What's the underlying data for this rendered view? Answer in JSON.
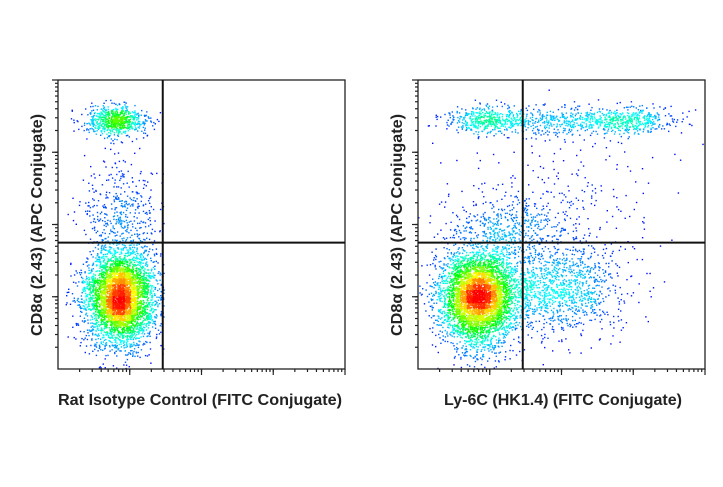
{
  "chart_data": [
    {
      "type": "scatter",
      "subtype": "flow-cytometry-density",
      "xlabel": "Rat Isotype Control (FITC Conjugate)",
      "ylabel": "CD8α (2.43) (APC Conjugate)",
      "xscale": "log10",
      "yscale": "log10",
      "xlim_log10": [
        1,
        5
      ],
      "ylim_log10": [
        1,
        5
      ],
      "gates": {
        "x_log10": 2.46,
        "y_log10": 2.75
      },
      "populations": [
        {
          "name": "CD8-negative",
          "x": 1.86,
          "y": 2.0,
          "sdx": 0.24,
          "sdy": 0.32,
          "n": 4300,
          "xmax": 2.47
        },
        {
          "name": "CD8-positive",
          "x": 1.8,
          "y": 4.45,
          "sdx": 0.22,
          "sdy": 0.1,
          "n": 700,
          "xmax": 2.47
        },
        {
          "name": "intermediate",
          "x": 1.85,
          "y": 3.1,
          "sdx": 0.28,
          "sdy": 0.4,
          "n": 450,
          "xmax": 2.47
        }
      ],
      "colormap": [
        "#0000ff",
        "#00ffff",
        "#00ff00",
        "#ffff00",
        "#ff0000"
      ]
    },
    {
      "type": "scatter",
      "subtype": "flow-cytometry-density",
      "xlabel": "Ly-6C (HK1.4) (FITC Conjugate)",
      "ylabel": "CD8α (2.43) (APC Conjugate)",
      "xscale": "log10",
      "yscale": "log10",
      "xlim_log10": [
        1,
        5
      ],
      "ylim_log10": [
        1,
        5
      ],
      "gates": {
        "x_log10": 2.46,
        "y_log10": 2.75
      },
      "populations": [
        {
          "name": "Ly-6C-negative CD8-negative",
          "x": 1.83,
          "y": 2.0,
          "sdx": 0.27,
          "sdy": 0.33,
          "n": 4300
        },
        {
          "name": "Ly-6C-positive CD8-negative",
          "x": 2.9,
          "y": 2.1,
          "sdx": 0.5,
          "sdy": 0.3,
          "n": 1200
        },
        {
          "name": "CD8-positive Ly-6C-low",
          "x": 1.95,
          "y": 4.45,
          "sdx": 0.3,
          "sdy": 0.09,
          "n": 450
        },
        {
          "name": "CD8-positive Ly-6C-high",
          "x": 3.9,
          "y": 4.45,
          "sdx": 0.35,
          "sdy": 0.09,
          "n": 450
        },
        {
          "name": "CD8-positive Ly-6C-mid",
          "x": 3.0,
          "y": 4.45,
          "sdx": 0.45,
          "sdy": 0.1,
          "n": 350
        },
        {
          "name": "intermediate",
          "x": 2.3,
          "y": 2.95,
          "sdx": 0.45,
          "sdy": 0.25,
          "n": 500
        },
        {
          "name": "scattered",
          "x": 3.0,
          "y": 3.5,
          "sdx": 0.8,
          "sdy": 0.6,
          "n": 220
        }
      ],
      "colormap": [
        "#0000ff",
        "#00ffff",
        "#00ff00",
        "#ffff00",
        "#ff0000"
      ]
    }
  ]
}
